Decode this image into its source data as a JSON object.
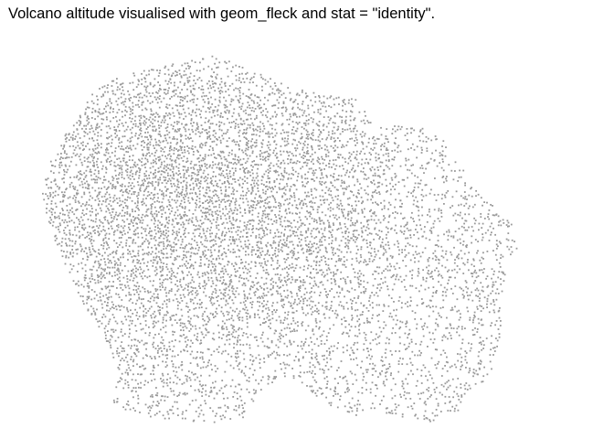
{
  "chart_data": {
    "type": "scatter",
    "title": "Volcano altitude visualised with geom_fleck and stat = \"identity\".",
    "xlabel": "",
    "ylabel": "",
    "grid": false,
    "legend": "none",
    "point_color": "#999999",
    "background_color": "#ffffff",
    "series": [
      {
        "name": "",
        "description_units": "dot density proportional to volcano altitude over an 87 x 61 grid",
        "x_range": [
          1,
          87
        ],
        "y_range": [
          1,
          61
        ]
      }
    ]
  }
}
